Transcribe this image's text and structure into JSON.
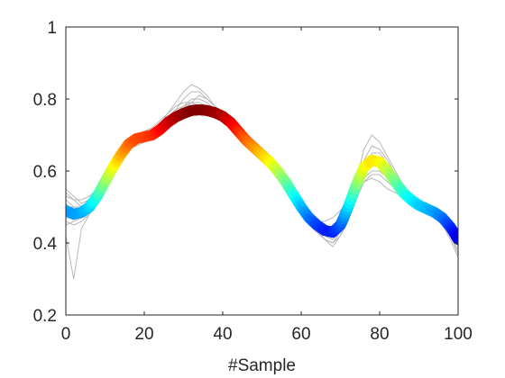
{
  "chart_data": {
    "type": "line",
    "xlabel": "#Sample",
    "ylabel": "",
    "xlim": [
      0,
      100
    ],
    "ylim": [
      0.2,
      1
    ],
    "xticks": [
      "0",
      "20",
      "40",
      "60",
      "80",
      "100"
    ],
    "yticks": [
      "0.2",
      "0.4",
      "0.6",
      "0.8",
      "1"
    ],
    "grid": false,
    "colormap": "jet",
    "background_series_color": "#b8b8b8",
    "mean_curve": {
      "x": [
        0,
        2,
        4,
        6,
        8,
        10,
        12,
        14,
        16,
        18,
        20,
        22,
        24,
        26,
        28,
        30,
        32,
        34,
        36,
        38,
        40,
        42,
        44,
        46,
        48,
        50,
        52,
        54,
        56,
        58,
        60,
        62,
        64,
        66,
        68,
        70,
        72,
        74,
        76,
        78,
        80,
        82,
        84,
        86,
        88,
        90,
        92,
        94,
        96,
        98,
        100
      ],
      "y": [
        0.49,
        0.48,
        0.485,
        0.5,
        0.53,
        0.57,
        0.61,
        0.645,
        0.675,
        0.69,
        0.695,
        0.7,
        0.715,
        0.735,
        0.75,
        0.76,
        0.768,
        0.77,
        0.768,
        0.762,
        0.752,
        0.735,
        0.71,
        0.685,
        0.665,
        0.645,
        0.625,
        0.6,
        0.57,
        0.535,
        0.5,
        0.47,
        0.45,
        0.435,
        0.43,
        0.45,
        0.5,
        0.56,
        0.61,
        0.63,
        0.625,
        0.6,
        0.57,
        0.54,
        0.52,
        0.505,
        0.495,
        0.485,
        0.47,
        0.445,
        0.41
      ]
    },
    "background_series": [
      {
        "y": [
          0.52,
          0.5,
          0.49,
          0.51,
          0.55,
          0.59,
          0.63,
          0.66,
          0.68,
          0.69,
          0.7,
          0.71,
          0.73,
          0.76,
          0.78,
          0.79,
          0.79,
          0.78,
          0.77,
          0.76,
          0.75,
          0.73,
          0.71,
          0.68,
          0.66,
          0.64,
          0.62,
          0.6,
          0.57,
          0.53,
          0.49,
          0.46,
          0.44,
          0.42,
          0.41,
          0.44,
          0.5,
          0.57,
          0.62,
          0.64,
          0.63,
          0.6,
          0.57,
          0.54,
          0.52,
          0.51,
          0.5,
          0.49,
          0.47,
          0.44,
          0.4
        ]
      },
      {
        "y": [
          0.45,
          0.46,
          0.47,
          0.49,
          0.52,
          0.56,
          0.6,
          0.64,
          0.67,
          0.69,
          0.7,
          0.7,
          0.71,
          0.72,
          0.74,
          0.75,
          0.76,
          0.76,
          0.76,
          0.75,
          0.74,
          0.72,
          0.7,
          0.68,
          0.66,
          0.65,
          0.63,
          0.61,
          0.58,
          0.55,
          0.52,
          0.49,
          0.47,
          0.45,
          0.44,
          0.45,
          0.49,
          0.55,
          0.6,
          0.62,
          0.62,
          0.6,
          0.57,
          0.55,
          0.53,
          0.51,
          0.5,
          0.49,
          0.48,
          0.46,
          0.43
        ]
      },
      {
        "y": [
          0.55,
          0.53,
          0.51,
          0.52,
          0.54,
          0.58,
          0.62,
          0.65,
          0.68,
          0.7,
          0.71,
          0.72,
          0.74,
          0.76,
          0.79,
          0.82,
          0.84,
          0.83,
          0.81,
          0.78,
          0.76,
          0.74,
          0.72,
          0.69,
          0.67,
          0.65,
          0.63,
          0.6,
          0.56,
          0.52,
          0.48,
          0.45,
          0.43,
          0.41,
          0.4,
          0.43,
          0.48,
          0.55,
          0.6,
          0.62,
          0.61,
          0.59,
          0.56,
          0.53,
          0.51,
          0.5,
          0.49,
          0.48,
          0.46,
          0.42,
          0.38
        ]
      },
      {
        "y": [
          0.42,
          0.3,
          0.44,
          0.48,
          0.51,
          0.55,
          0.59,
          0.63,
          0.66,
          0.68,
          0.69,
          0.7,
          0.72,
          0.74,
          0.76,
          0.77,
          0.78,
          0.78,
          0.77,
          0.76,
          0.75,
          0.73,
          0.71,
          0.69,
          0.67,
          0.65,
          0.63,
          0.61,
          0.58,
          0.54,
          0.5,
          0.47,
          0.44,
          0.42,
          0.41,
          0.43,
          0.47,
          0.53,
          0.58,
          0.6,
          0.6,
          0.58,
          0.56,
          0.54,
          0.52,
          0.5,
          0.49,
          0.48,
          0.46,
          0.43,
          0.4
        ]
      },
      {
        "y": [
          0.5,
          0.5,
          0.5,
          0.52,
          0.55,
          0.58,
          0.62,
          0.65,
          0.67,
          0.68,
          0.69,
          0.7,
          0.72,
          0.74,
          0.76,
          0.78,
          0.8,
          0.8,
          0.79,
          0.77,
          0.75,
          0.73,
          0.71,
          0.69,
          0.67,
          0.65,
          0.63,
          0.61,
          0.58,
          0.55,
          0.51,
          0.48,
          0.46,
          0.44,
          0.42,
          0.44,
          0.49,
          0.56,
          0.63,
          0.67,
          0.66,
          0.63,
          0.59,
          0.56,
          0.53,
          0.51,
          0.5,
          0.49,
          0.47,
          0.44,
          0.41
        ]
      },
      {
        "y": [
          0.54,
          0.52,
          0.5,
          0.5,
          0.53,
          0.57,
          0.61,
          0.64,
          0.67,
          0.69,
          0.7,
          0.71,
          0.72,
          0.73,
          0.75,
          0.76,
          0.77,
          0.77,
          0.76,
          0.75,
          0.74,
          0.72,
          0.7,
          0.68,
          0.66,
          0.64,
          0.62,
          0.6,
          0.57,
          0.54,
          0.51,
          0.48,
          0.46,
          0.44,
          0.43,
          0.44,
          0.47,
          0.52,
          0.57,
          0.59,
          0.59,
          0.57,
          0.55,
          0.53,
          0.52,
          0.51,
          0.5,
          0.49,
          0.48,
          0.45,
          0.42
        ]
      },
      {
        "y": [
          0.47,
          0.47,
          0.48,
          0.5,
          0.53,
          0.57,
          0.61,
          0.64,
          0.67,
          0.68,
          0.69,
          0.7,
          0.71,
          0.73,
          0.75,
          0.76,
          0.77,
          0.78,
          0.77,
          0.76,
          0.75,
          0.74,
          0.72,
          0.7,
          0.68,
          0.66,
          0.63,
          0.6,
          0.56,
          0.52,
          0.49,
          0.47,
          0.46,
          0.46,
          0.47,
          0.49,
          0.52,
          0.55,
          0.57,
          0.58,
          0.57,
          0.55,
          0.54,
          0.53,
          0.52,
          0.51,
          0.5,
          0.49,
          0.47,
          0.43,
          0.39
        ]
      },
      {
        "y": [
          0.51,
          0.49,
          0.48,
          0.49,
          0.52,
          0.56,
          0.6,
          0.63,
          0.66,
          0.68,
          0.7,
          0.71,
          0.73,
          0.75,
          0.77,
          0.78,
          0.78,
          0.78,
          0.77,
          0.76,
          0.74,
          0.72,
          0.7,
          0.68,
          0.66,
          0.64,
          0.62,
          0.6,
          0.57,
          0.54,
          0.51,
          0.47,
          0.44,
          0.41,
          0.39,
          0.42,
          0.48,
          0.57,
          0.66,
          0.7,
          0.68,
          0.64,
          0.6,
          0.56,
          0.53,
          0.51,
          0.5,
          0.49,
          0.47,
          0.44,
          0.41
        ]
      },
      {
        "y": [
          0.53,
          0.52,
          0.52,
          0.53,
          0.55,
          0.58,
          0.61,
          0.64,
          0.66,
          0.67,
          0.68,
          0.69,
          0.71,
          0.73,
          0.75,
          0.77,
          0.79,
          0.81,
          0.8,
          0.78,
          0.76,
          0.74,
          0.71,
          0.68,
          0.66,
          0.64,
          0.62,
          0.6,
          0.57,
          0.53,
          0.49,
          0.46,
          0.43,
          0.41,
          0.4,
          0.42,
          0.46,
          0.53,
          0.6,
          0.65,
          0.65,
          0.62,
          0.58,
          0.55,
          0.53,
          0.51,
          0.5,
          0.48,
          0.46,
          0.42,
          0.37
        ]
      },
      {
        "y": [
          0.46,
          0.45,
          0.46,
          0.48,
          0.51,
          0.55,
          0.59,
          0.63,
          0.66,
          0.68,
          0.7,
          0.71,
          0.72,
          0.74,
          0.76,
          0.78,
          0.79,
          0.79,
          0.78,
          0.77,
          0.75,
          0.73,
          0.71,
          0.69,
          0.67,
          0.65,
          0.63,
          0.6,
          0.57,
          0.53,
          0.49,
          0.46,
          0.44,
          0.43,
          0.42,
          0.44,
          0.48,
          0.54,
          0.6,
          0.63,
          0.63,
          0.61,
          0.58,
          0.55,
          0.53,
          0.52,
          0.51,
          0.5,
          0.48,
          0.44,
          0.4
        ]
      },
      {
        "y": [
          0.49,
          0.48,
          0.47,
          0.49,
          0.53,
          0.58,
          0.62,
          0.66,
          0.69,
          0.7,
          0.7,
          0.71,
          0.72,
          0.74,
          0.77,
          0.8,
          0.82,
          0.82,
          0.8,
          0.78,
          0.76,
          0.74,
          0.71,
          0.68,
          0.66,
          0.64,
          0.62,
          0.59,
          0.56,
          0.52,
          0.48,
          0.45,
          0.43,
          0.42,
          0.41,
          0.43,
          0.47,
          0.54,
          0.61,
          0.64,
          0.64,
          0.61,
          0.58,
          0.55,
          0.52,
          0.5,
          0.49,
          0.47,
          0.45,
          0.41,
          0.36
        ]
      }
    ]
  }
}
